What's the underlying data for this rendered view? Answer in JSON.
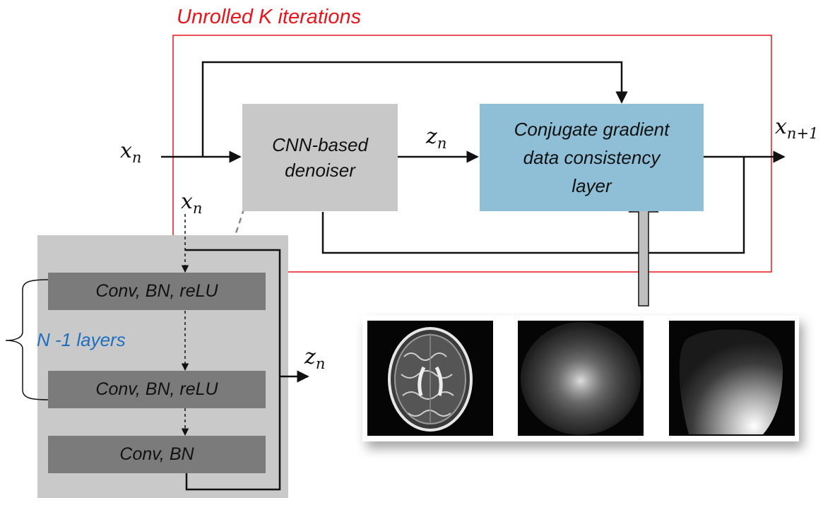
{
  "colors": {
    "frame": "#e8151b",
    "denoiser": "#c8c8c8",
    "cg": "#8ebfd6",
    "panel": "#c9c9c9",
    "layer": "#7b7b7b",
    "accent_blue": "#1f6fbf"
  },
  "frame": {
    "title": "Unrolled K iterations"
  },
  "blocks": {
    "denoiser": [
      "CNN-based",
      "denoiser"
    ],
    "cg": [
      "Conjugate gradient",
      "data consistency",
      "layer"
    ]
  },
  "signals": {
    "x_in": {
      "base": "x",
      "sub": "n"
    },
    "z_mid": {
      "base": "z",
      "sub": "n"
    },
    "x_out": {
      "base": "x",
      "sub": "n+1"
    },
    "x_panel": {
      "base": "x",
      "sub": "n"
    },
    "z_panel": {
      "base": "z",
      "sub": "n"
    }
  },
  "cnn_panel": {
    "layers": [
      "Conv, BN, reLU",
      "Conv, BN, reLU",
      "Conv, BN"
    ],
    "brace_label": "N -1 layers"
  },
  "images": [
    {
      "name": "brain-mr-image",
      "icon": "axial-brain-mri"
    },
    {
      "name": "undersampling-mask",
      "icon": "random-sampling-mask"
    },
    {
      "name": "coil-sensitivity-map",
      "icon": "coil-sensitivity"
    }
  ]
}
